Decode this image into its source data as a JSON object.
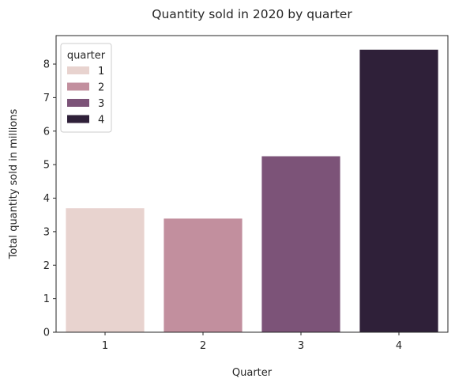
{
  "chart_data": {
    "type": "bar",
    "title": "Quantity sold in 2020 by quarter",
    "xlabel": "Quarter",
    "ylabel": "Total quantity sold in millions",
    "categories": [
      "1",
      "2",
      "3",
      "4"
    ],
    "values": [
      3.7,
      3.39,
      5.25,
      8.43
    ],
    "ylim": [
      0,
      8.85
    ],
    "yticks": [
      "0",
      "1",
      "2",
      "3",
      "4",
      "5",
      "6",
      "7",
      "8"
    ],
    "colors": [
      "#e8d3cf",
      "#c28f9e",
      "#7c5378",
      "#2f2039"
    ],
    "grid": false,
    "legend": {
      "title": "quarter",
      "placement": "top-left",
      "entries": [
        "1",
        "2",
        "3",
        "4"
      ]
    }
  }
}
